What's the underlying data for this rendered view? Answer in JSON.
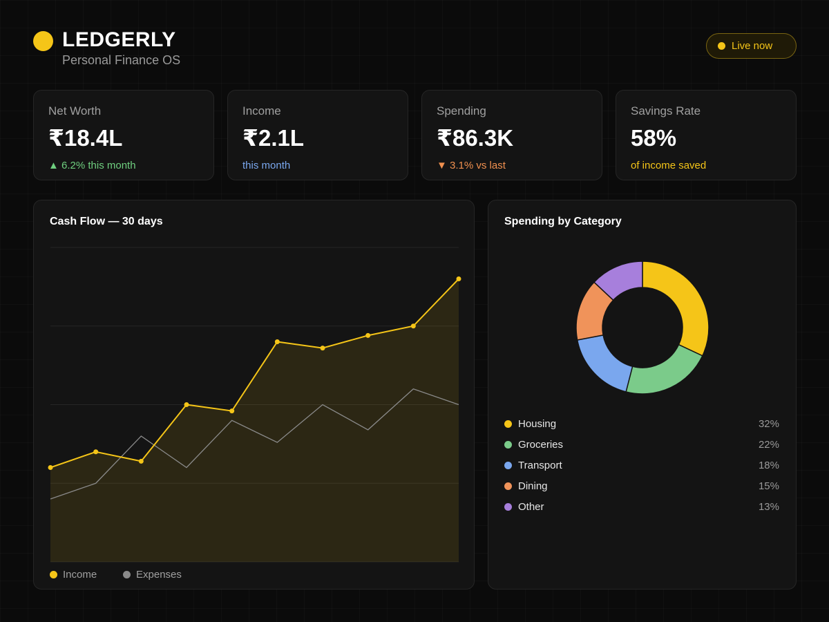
{
  "brand": {
    "name": "LEDGERLY",
    "subtitle": "Personal Finance OS"
  },
  "status": {
    "label": "Live now"
  },
  "kpis": [
    {
      "label": "Net Worth",
      "value": "₹18.4L",
      "note": "▲ 6.2% this month",
      "note_color": "#6fcf7f"
    },
    {
      "label": "Income",
      "value": "₹2.1L",
      "note": "this month",
      "note_color": "#7aa7ee"
    },
    {
      "label": "Spending",
      "value": "₹86.3K",
      "note": "▼ 3.1% vs last",
      "note_color": "#f0904f"
    },
    {
      "label": "Savings Rate",
      "value": "58%",
      "note": "of income saved",
      "note_color": "#f5c518"
    }
  ],
  "cashflow": {
    "title": "Cash Flow — 30 days",
    "legend": {
      "income": "Income",
      "expenses": "Expenses"
    },
    "colors": {
      "income": "#f5c518",
      "expenses": "#8a8a8a"
    }
  },
  "chart_data": [
    {
      "type": "line",
      "title": "Cash Flow — 30 days",
      "x": [
        1,
        2,
        3,
        4,
        5,
        6,
        7,
        8,
        9,
        10
      ],
      "ylim": [
        0,
        100
      ],
      "grid": true,
      "legend": "bottom-left",
      "series": [
        {
          "name": "Income",
          "values": [
            30,
            35,
            32,
            50,
            48,
            70,
            68,
            72,
            75,
            90
          ]
        },
        {
          "name": "Expenses",
          "values": [
            20,
            25,
            40,
            30,
            45,
            38,
            50,
            42,
            55,
            50
          ]
        }
      ]
    },
    {
      "type": "pie",
      "title": "Spending by Category",
      "categories": [
        "Housing",
        "Groceries",
        "Transport",
        "Dining",
        "Other"
      ],
      "values": [
        32,
        22,
        18,
        15,
        13
      ],
      "colors": [
        "#f5c518",
        "#7bcb8a",
        "#7aa7ee",
        "#f0935a",
        "#a77fdc"
      ],
      "legend": "bottom"
    }
  ],
  "spending": {
    "title": "Spending by Category",
    "categories": [
      {
        "name": "Housing",
        "pct": "32%",
        "color": "#f5c518"
      },
      {
        "name": "Groceries",
        "pct": "22%",
        "color": "#7bcb8a"
      },
      {
        "name": "Transport",
        "pct": "18%",
        "color": "#7aa7ee"
      },
      {
        "name": "Dining",
        "pct": "15%",
        "color": "#f0935a"
      },
      {
        "name": "Other",
        "pct": "13%",
        "color": "#a77fdc"
      }
    ]
  }
}
